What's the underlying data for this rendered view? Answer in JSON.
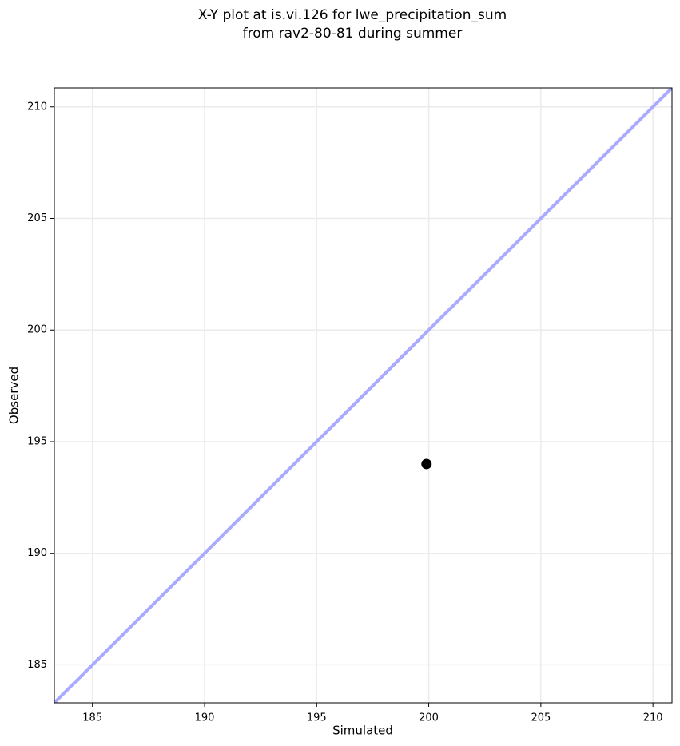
{
  "chart_data": {
    "type": "scatter",
    "title": [
      "X-Y plot at is.vi.126 for lwe_precipitation_sum",
      "from rav2-80-81 during summer"
    ],
    "x_label": "Simulated",
    "y_label": "Observed",
    "series": [
      {
        "x": [
          199.9
        ],
        "values": [
          194.0
        ],
        "color": "#000000"
      }
    ],
    "xlim": [
      183.3,
      210.85
    ],
    "ylim": [
      183.3,
      210.85
    ],
    "xticks": [
      185,
      190,
      195,
      200,
      205,
      210
    ],
    "yticks": [
      185,
      190,
      195,
      200,
      205,
      210
    ],
    "grid": true,
    "identity_line": true,
    "identity_line_color": "#aaaaff"
  }
}
